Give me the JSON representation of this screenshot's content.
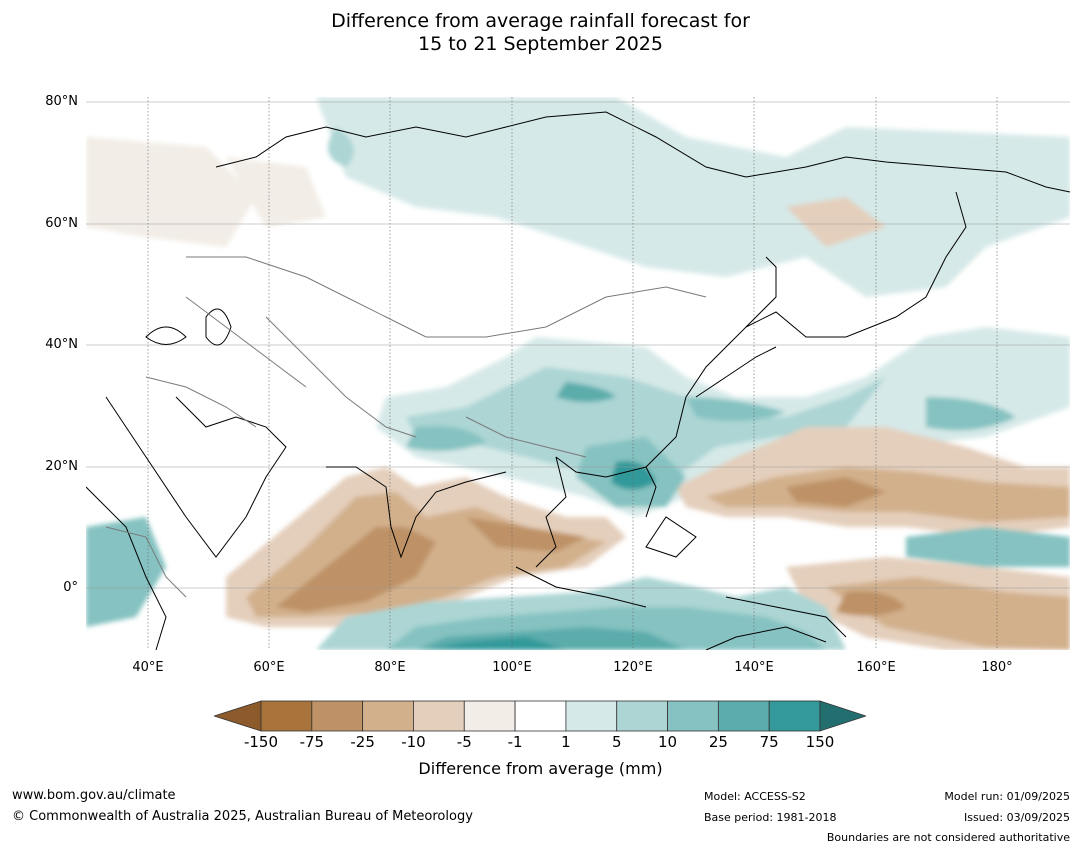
{
  "title": {
    "line1": "Difference from average rainfall forecast for",
    "line2": "15 to 21 September 2025"
  },
  "map": {
    "region": "Asia and western Pacific",
    "lat_labels": [
      "80°N",
      "60°N",
      "40°N",
      "20°N",
      "0°"
    ],
    "lon_labels": [
      "40°E",
      "60°E",
      "80°E",
      "100°E",
      "120°E",
      "140°E",
      "160°E",
      "180°"
    ],
    "extent": {
      "lon": [
        30,
        192
      ],
      "lat": [
        -10,
        81
      ]
    }
  },
  "colorbar": {
    "label": "Difference from average (mm)",
    "ticks": [
      "-150",
      "-75",
      "-25",
      "-10",
      "-5",
      "-1",
      "1",
      "5",
      "10",
      "25",
      "75",
      "150"
    ],
    "colors": [
      "#a8743c",
      "#be9266",
      "#d2b08c",
      "#e4cfbc",
      "#f2ede6",
      "#ffffff",
      "#d5e9e8",
      "#acd5d4",
      "#85c2c1",
      "#5cacac",
      "#33999a"
    ],
    "under_color": "#8c5a2b",
    "over_color": "#236f70"
  },
  "footer": {
    "website": "www.bom.gov.au/climate",
    "copyright": "© Commonwealth of Australia 2025, Australian Bureau of Meteorology",
    "model": "Model: ACCESS-S2",
    "base_period": "Base period: 1981-2018",
    "model_run": "Model run: 01/09/2025",
    "issued": "Issued: 03/09/2025",
    "disclaimer": "Boundaries are not considered authoritative"
  }
}
